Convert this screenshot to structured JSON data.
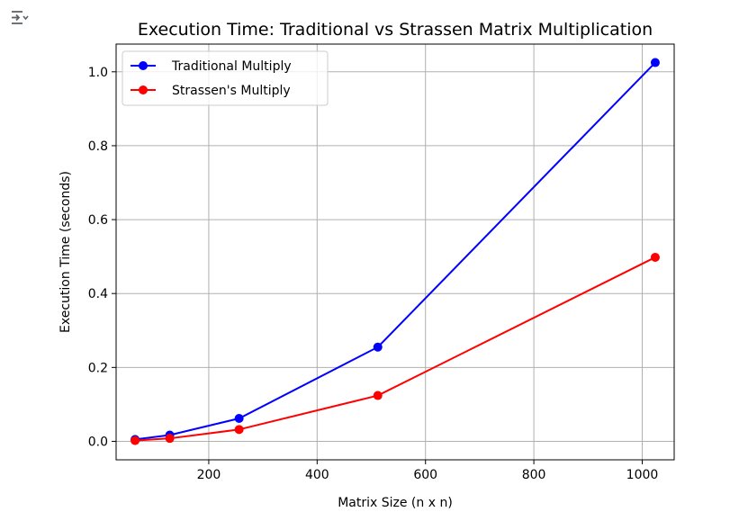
{
  "toolbar": {
    "output_icon": "output-toggle-icon"
  },
  "chart_data": {
    "type": "line",
    "title": "Execution Time: Traditional vs Strassen Matrix Multiplication",
    "xlabel": "Matrix Size (n x n)",
    "ylabel": "Execution Time (seconds)",
    "xlim": [
      29,
      1059
    ],
    "ylim": [
      -0.05,
      1.075
    ],
    "xticks": [
      200,
      400,
      600,
      800,
      1000
    ],
    "xtick_labels": [
      "200",
      "400",
      "600",
      "800",
      "1000"
    ],
    "yticks": [
      0.0,
      0.2,
      0.4,
      0.6,
      0.8,
      1.0
    ],
    "ytick_labels": [
      "0.0",
      "0.2",
      "0.4",
      "0.6",
      "0.8",
      "1.0"
    ],
    "grid": true,
    "legend_position": "top-left",
    "x": [
      64,
      128,
      256,
      512,
      1024
    ],
    "series": [
      {
        "name": "Traditional Multiply",
        "color": "#0000ff",
        "values": [
          0.005,
          0.017,
          0.062,
          0.255,
          1.025
        ]
      },
      {
        "name": "Strassen's Multiply",
        "color": "#ff0000",
        "values": [
          0.002,
          0.008,
          0.032,
          0.124,
          0.498
        ]
      }
    ]
  }
}
